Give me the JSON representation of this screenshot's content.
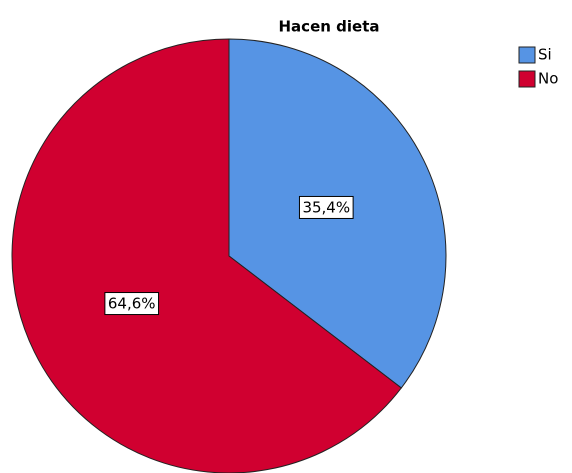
{
  "chart_data": {
    "type": "pie",
    "title": "Hacen dieta",
    "categories": [
      "Si",
      "No"
    ],
    "values": [
      35.4,
      64.6
    ],
    "value_labels": [
      "35,4%",
      "64,6%"
    ],
    "colors": [
      "#5694e4",
      "#d00030"
    ],
    "legend": "top-right"
  }
}
